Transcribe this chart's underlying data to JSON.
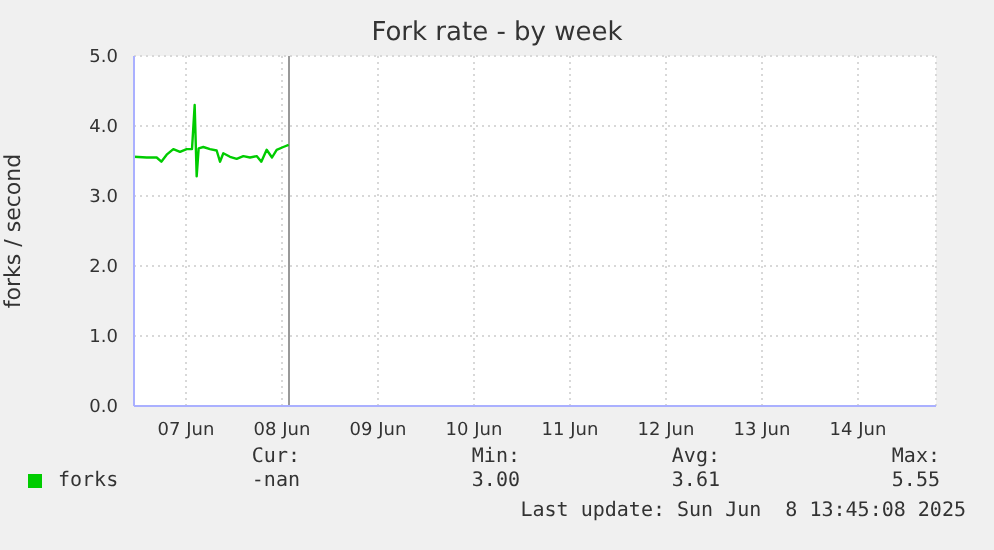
{
  "chart_data": {
    "type": "line",
    "title": "Fork rate - by week",
    "ylabel": "forks / second",
    "x": [
      "2025-06-06T23:00",
      "2025-06-07T02:10",
      "2025-06-07T04:40",
      "2025-06-07T05:50",
      "2025-06-07T07:10",
      "2025-06-07T08:50",
      "2025-06-07T10:30",
      "2025-06-07T12:10",
      "2025-06-07T13:30",
      "2025-06-07T14:10",
      "2025-06-07T14:40",
      "2025-06-07T15:10",
      "2025-06-07T16:20",
      "2025-06-07T18:00",
      "2025-06-07T19:40",
      "2025-06-07T20:30",
      "2025-06-07T21:20",
      "2025-06-07T23:00",
      "2025-06-08T00:40",
      "2025-06-08T02:20",
      "2025-06-08T04:00",
      "2025-06-08T05:40",
      "2025-06-08T06:50",
      "2025-06-08T08:10",
      "2025-06-08T09:30",
      "2025-06-08T10:40",
      "2025-06-08T12:20",
      "2025-06-08T13:40"
    ],
    "series": [
      {
        "name": "forks",
        "color": "#00cc00",
        "values": [
          3.56,
          3.55,
          3.55,
          3.49,
          3.59,
          3.67,
          3.63,
          3.67,
          3.67,
          4.3,
          3.28,
          3.68,
          3.7,
          3.67,
          3.65,
          3.49,
          3.61,
          3.56,
          3.53,
          3.57,
          3.55,
          3.57,
          3.49,
          3.66,
          3.55,
          3.66,
          3.7,
          3.73
        ]
      }
    ],
    "xlim": [
      "2025-06-06T23:00",
      "2025-06-15T07:30"
    ],
    "xticks": [
      {
        "value": "2025-06-07T12:00",
        "label": "07 Jun"
      },
      {
        "value": "2025-06-08T12:00",
        "label": "08 Jun"
      },
      {
        "value": "2025-06-09T12:00",
        "label": "09 Jun"
      },
      {
        "value": "2025-06-10T12:00",
        "label": "10 Jun"
      },
      {
        "value": "2025-06-11T12:00",
        "label": "11 Jun"
      },
      {
        "value": "2025-06-12T12:00",
        "label": "12 Jun"
      },
      {
        "value": "2025-06-13T12:00",
        "label": "13 Jun"
      },
      {
        "value": "2025-06-14T12:00",
        "label": "14 Jun"
      }
    ],
    "ylim": [
      0,
      5
    ],
    "yticks": [
      {
        "value": 0,
        "label": "0.0"
      },
      {
        "value": 1,
        "label": "1.0"
      },
      {
        "value": 2,
        "label": "2.0"
      },
      {
        "value": 3,
        "label": "3.0"
      },
      {
        "value": 4,
        "label": "4.0"
      },
      {
        "value": 5,
        "label": "5.0"
      }
    ],
    "ref_lines": [
      {
        "axis": "x",
        "value": "2025-06-08T13:45",
        "color": "#999999"
      }
    ],
    "grid": true,
    "legend": "bottom",
    "marker": "none",
    "line_style": "solid",
    "annotations": [
      "Cur:",
      "-nan",
      "Min:",
      "3.00",
      "Avg:",
      "3.61",
      "Max:",
      "5.55",
      "Last update: Sun Jun  8 13:45:08 2025"
    ]
  }
}
